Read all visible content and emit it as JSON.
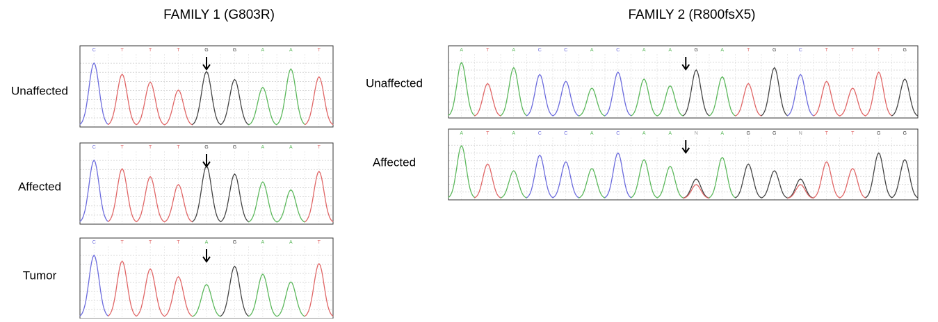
{
  "panels": [
    {
      "title": "FAMILY 1 (G803R)",
      "rows": [
        {
          "label": "Unaffected",
          "bases": [
            "C",
            "T",
            "T",
            "T",
            "G",
            "G",
            "A",
            "A",
            "T"
          ]
        },
        {
          "label": "Affected",
          "bases": [
            "C",
            "T",
            "T",
            "T",
            "G",
            "G",
            "A",
            "A",
            "T"
          ]
        },
        {
          "label": "Tumor",
          "bases": [
            "C",
            "T",
            "T",
            "T",
            "A",
            "G",
            "A",
            "A",
            "T"
          ]
        }
      ]
    },
    {
      "title": "FAMILY 2 (R800fsX5)",
      "rows": [
        {
          "label": "Unaffected",
          "bases": [
            "A",
            "T",
            "A",
            "C",
            "C",
            "A",
            "C",
            "A",
            "A",
            "G",
            "A",
            "T",
            "G",
            "C",
            "T",
            "T",
            "T",
            "G"
          ]
        },
        {
          "label": "Affected",
          "bases": [
            "A",
            "T",
            "A",
            "C",
            "C",
            "A",
            "C",
            "A",
            "A",
            "N",
            "A",
            "G",
            "G",
            "N",
            "T",
            "T",
            "G",
            "G"
          ]
        }
      ]
    }
  ]
}
